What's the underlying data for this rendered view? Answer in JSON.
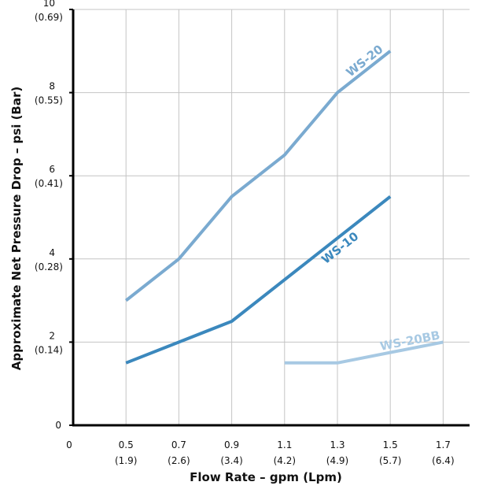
{
  "chart_data": {
    "type": "line",
    "xlabel": "Flow Rate – gpm (Lpm)",
    "ylabel": "Approximate Net Pressure Drop – psi (Bar)",
    "xlim": [
      0.3,
      1.8
    ],
    "ylim": [
      0,
      10
    ],
    "grid": true,
    "x_ticks": [
      {
        "value": 0.5,
        "label": "0.5",
        "sublabel": "(1.9)"
      },
      {
        "value": 0.7,
        "label": "0.7",
        "sublabel": "(2.6)"
      },
      {
        "value": 0.9,
        "label": "0.9",
        "sublabel": "(3.4)"
      },
      {
        "value": 1.1,
        "label": "1.1",
        "sublabel": "(4.2)"
      },
      {
        "value": 1.3,
        "label": "1.3",
        "sublabel": "(4.9)"
      },
      {
        "value": 1.5,
        "label": "1.5",
        "sublabel": "(5.7)"
      },
      {
        "value": 1.7,
        "label": "1.7",
        "sublabel": "(6.4)"
      }
    ],
    "x_origin_label": "0",
    "y_ticks": [
      {
        "value": 0,
        "label": "0",
        "sublabel": ""
      },
      {
        "value": 2,
        "label": "2",
        "sublabel": "(0.14)"
      },
      {
        "value": 4,
        "label": "4",
        "sublabel": "(0.28)"
      },
      {
        "value": 6,
        "label": "6",
        "sublabel": "(0.41)"
      },
      {
        "value": 8,
        "label": "8",
        "sublabel": "(0.55)"
      },
      {
        "value": 10,
        "label": "10",
        "sublabel": "(0.69)"
      }
    ],
    "series": [
      {
        "name": "WS-20",
        "color": "#7aaad0",
        "x": [
          0.5,
          0.7,
          0.9,
          1.1,
          1.3,
          1.5
        ],
        "y": [
          3.0,
          4.0,
          5.5,
          6.5,
          8.0,
          9.0
        ]
      },
      {
        "name": "WS-10",
        "color": "#3b88bd",
        "x": [
          0.5,
          0.9,
          1.5
        ],
        "y": [
          1.5,
          2.5,
          5.5
        ]
      },
      {
        "name": "WS-20BB",
        "color": "#a7c9e3",
        "x": [
          1.1,
          1.3,
          1.7
        ],
        "y": [
          1.5,
          1.5,
          2.0
        ]
      }
    ]
  }
}
